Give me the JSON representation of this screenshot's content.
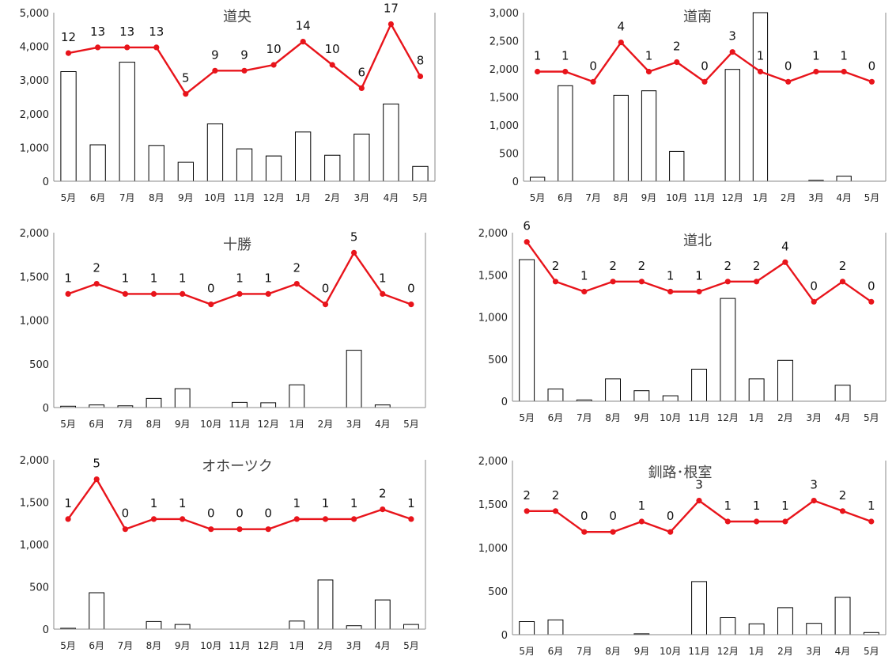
{
  "charts": [
    {
      "type": "bar+line",
      "title": "道央",
      "categories": [
        "5月",
        "6月",
        "7月",
        "8月",
        "9月",
        "10月",
        "11月",
        "12月",
        "1月",
        "2月",
        "3月",
        "4月",
        "5月"
      ],
      "yticks": [
        "0",
        "1,000",
        "2,000",
        "3,000",
        "4,000",
        "5,000"
      ],
      "ylim": [
        0,
        5000
      ],
      "bars": [
        3250,
        1080,
        3530,
        1060,
        560,
        1700,
        960,
        750,
        1460,
        770,
        1400,
        2290,
        440
      ],
      "line_labels": [
        12,
        13,
        13,
        13,
        5,
        9,
        9,
        10,
        14,
        10,
        6,
        17,
        8
      ],
      "line_y": [
        3800,
        3970,
        3970,
        3970,
        2590,
        3280,
        3280,
        3450,
        4140,
        3450,
        2760,
        4660,
        3110
      ],
      "bar_color": "#ffffff",
      "line_color": "#e8141b"
    },
    {
      "type": "bar+line",
      "title": "道南",
      "categories": [
        "5月",
        "6月",
        "7月",
        "8月",
        "9月",
        "10月",
        "11月",
        "12月",
        "1月",
        "2月",
        "3月",
        "4月",
        "5月"
      ],
      "yticks": [
        "0",
        "500",
        "1,000",
        "1,500",
        "2,000",
        "2,500",
        "3,000"
      ],
      "ylim": [
        0,
        3000
      ],
      "bars": [
        70,
        1700,
        0,
        1530,
        1610,
        530,
        0,
        1990,
        3000,
        0,
        15,
        90,
        0
      ],
      "line_labels": [
        1,
        1,
        0,
        4,
        1,
        2,
        0,
        3,
        1,
        0,
        1,
        1,
        0
      ],
      "line_y": [
        1950,
        1950,
        1770,
        2470,
        1950,
        2120,
        1770,
        2300,
        1950,
        1770,
        1950,
        1950,
        1770
      ],
      "bar_color": "#ffffff",
      "line_color": "#e8141b"
    },
    {
      "type": "bar+line",
      "title": "十勝",
      "categories": [
        "5月",
        "6月",
        "7月",
        "8月",
        "9月",
        "10月",
        "11月",
        "12月",
        "1月",
        "2月",
        "3月",
        "4月",
        "5月"
      ],
      "yticks": [
        "0",
        "500",
        "1,000",
        "1,500",
        "2,000"
      ],
      "ylim": [
        0,
        2000
      ],
      "bars": [
        15,
        30,
        20,
        105,
        215,
        0,
        60,
        55,
        260,
        0,
        655,
        30,
        0
      ],
      "line_labels": [
        1,
        2,
        1,
        1,
        1,
        0,
        1,
        1,
        2,
        0,
        5,
        1,
        0
      ],
      "line_y": [
        1300,
        1415,
        1300,
        1300,
        1300,
        1180,
        1300,
        1300,
        1415,
        1180,
        1770,
        1300,
        1180
      ],
      "bar_color": "#ffffff",
      "line_color": "#e8141b"
    },
    {
      "type": "bar+line",
      "title": "道北",
      "categories": [
        "5月",
        "6月",
        "7月",
        "8月",
        "9月",
        "10月",
        "11月",
        "12月",
        "1月",
        "2月",
        "3月",
        "4月",
        "5月"
      ],
      "yticks": [
        "0",
        "500",
        "1,000",
        "1,500",
        "2,000"
      ],
      "ylim": [
        0,
        2000
      ],
      "bars": [
        1680,
        145,
        15,
        265,
        125,
        65,
        380,
        1220,
        265,
        485,
        0,
        190,
        0
      ],
      "line_labels": [
        6,
        2,
        1,
        2,
        2,
        1,
        1,
        2,
        2,
        4,
        0,
        2,
        0
      ],
      "line_y": [
        1890,
        1420,
        1300,
        1420,
        1420,
        1300,
        1300,
        1420,
        1420,
        1650,
        1180,
        1420,
        1180
      ],
      "bar_color": "#ffffff",
      "line_color": "#e8141b"
    },
    {
      "type": "bar+line",
      "title": "オホーツク",
      "categories": [
        "5月",
        "6月",
        "7月",
        "8月",
        "9月",
        "10月",
        "11月",
        "12月",
        "1月",
        "2月",
        "3月",
        "4月",
        "5月"
      ],
      "yticks": [
        "0",
        "500",
        "1,000",
        "1,500",
        "2,000"
      ],
      "ylim": [
        0,
        2000
      ],
      "bars": [
        10,
        430,
        0,
        90,
        55,
        0,
        0,
        0,
        95,
        580,
        40,
        345,
        55
      ],
      "line_labels": [
        1,
        5,
        0,
        1,
        1,
        0,
        0,
        0,
        1,
        1,
        1,
        2,
        1
      ],
      "line_y": [
        1300,
        1770,
        1180,
        1300,
        1300,
        1180,
        1180,
        1180,
        1300,
        1300,
        1300,
        1415,
        1300
      ],
      "bar_color": "#ffffff",
      "line_color": "#e8141b"
    },
    {
      "type": "bar+line",
      "title": "釧路･根室",
      "categories": [
        "5月",
        "6月",
        "7月",
        "8月",
        "9月",
        "10月",
        "11月",
        "12月",
        "1月",
        "2月",
        "3月",
        "4月",
        "5月"
      ],
      "yticks": [
        "0",
        "500",
        "1,000",
        "1,500",
        "2,000"
      ],
      "ylim": [
        0,
        2000
      ],
      "bars": [
        150,
        170,
        0,
        0,
        10,
        0,
        610,
        195,
        125,
        310,
        130,
        430,
        25
      ],
      "line_labels": [
        2,
        2,
        0,
        0,
        1,
        0,
        3,
        1,
        1,
        1,
        3,
        2,
        1
      ],
      "line_y": [
        1420,
        1420,
        1180,
        1180,
        1300,
        1180,
        1540,
        1300,
        1300,
        1300,
        1540,
        1420,
        1300
      ],
      "bar_color": "#ffffff",
      "line_color": "#e8141b"
    }
  ]
}
